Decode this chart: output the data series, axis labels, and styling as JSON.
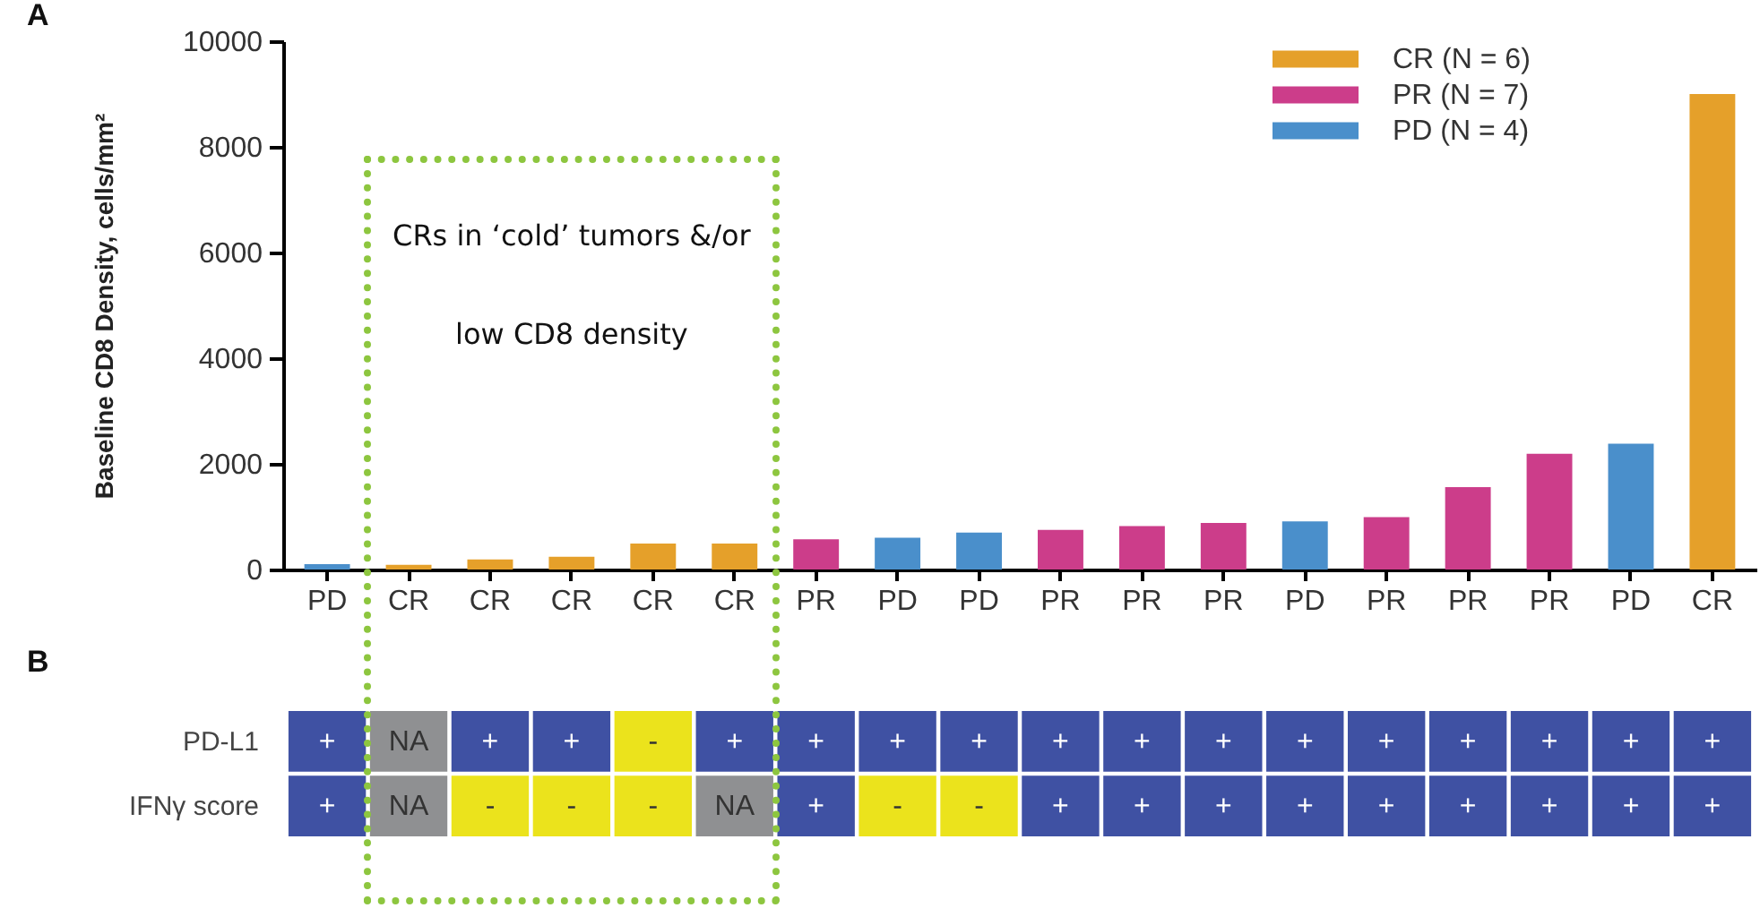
{
  "chart_data": [
    {
      "type": "bar",
      "title": "A",
      "ylabel": "Baseline CD8 Density, cells/mm²",
      "categories": [
        "PD",
        "CR",
        "CR",
        "CR",
        "CR",
        "CR",
        "PR",
        "PD",
        "PD",
        "PR",
        "PR",
        "PR",
        "PD",
        "PR",
        "PR",
        "PR",
        "PD",
        "CR"
      ],
      "series": [
        {
          "name": "CR (N = 6)",
          "color": "#e5a02a",
          "values": [
            null,
            90,
            190,
            240,
            490,
            490,
            null,
            null,
            null,
            null,
            null,
            null,
            null,
            null,
            null,
            null,
            null,
            9000
          ]
        },
        {
          "name": "PR (N = 7)",
          "color": "#cc3d8a",
          "values": [
            null,
            null,
            null,
            null,
            null,
            null,
            570,
            null,
            null,
            750,
            820,
            880,
            null,
            990,
            1560,
            2190,
            null,
            null
          ]
        },
        {
          "name": "PD (N = 4)",
          "color": "#4a8fcb",
          "values": [
            100,
            null,
            null,
            null,
            null,
            null,
            null,
            600,
            700,
            null,
            null,
            null,
            910,
            null,
            null,
            null,
            2380,
            null
          ]
        }
      ],
      "stacked": true,
      "ylim": [
        0,
        10000
      ],
      "yticks": [
        0,
        2000,
        4000,
        6000,
        8000,
        10000
      ],
      "grid": false,
      "legend": "top right",
      "annotations": [
        "CRs in ‘cold’ tumors &/or low CD8 density"
      ]
    },
    {
      "type": "heatmap",
      "title": "B",
      "categories": [
        null,
        null,
        null,
        null,
        null,
        null,
        null,
        null,
        null,
        null,
        null,
        null,
        null,
        null,
        null,
        null,
        null,
        null
      ],
      "y_categories": [
        "PD-L1",
        "IFNγ score"
      ],
      "cells": [
        [
          "+",
          "NA",
          "+",
          "+",
          "-",
          "+",
          "+",
          "+",
          "+",
          "+",
          "+",
          "+",
          "+",
          "+",
          "+",
          "+",
          "+",
          "+"
        ],
        [
          "+",
          "NA",
          "-",
          "-",
          "-",
          "NA",
          "+",
          "-",
          "-",
          "+",
          "+",
          "+",
          "+",
          "+",
          "+",
          "+",
          "+",
          "+"
        ]
      ],
      "colors": [
        [
          "#3f51a3",
          "#8f9092",
          "#3f51a3",
          "#3f51a3",
          "#ebe31c",
          "#3f51a3",
          "#3f51a3",
          "#3f51a3",
          "#3f51a3",
          "#3f51a3",
          "#3f51a3",
          "#3f51a3",
          "#3f51a3",
          "#3f51a3",
          "#3f51a3",
          "#3f51a3",
          "#3f51a3",
          "#3f51a3"
        ],
        [
          "#3f51a3",
          "#8f9092",
          "#ebe31c",
          "#ebe31c",
          "#ebe31c",
          "#8f9092",
          "#3f51a3",
          "#ebe31c",
          "#ebe31c",
          "#3f51a3",
          "#3f51a3",
          "#3f51a3",
          "#3f51a3",
          "#3f51a3",
          "#3f51a3",
          "#3f51a3",
          "#3f51a3",
          "#3f51a3"
        ]
      ]
    }
  ]
}
